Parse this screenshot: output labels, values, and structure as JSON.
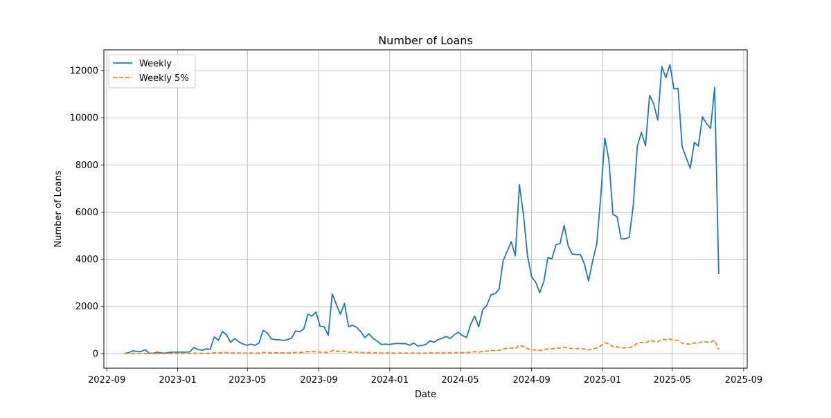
{
  "chart_data": {
    "type": "line",
    "title": "Number of Loans",
    "xlabel": "Date",
    "ylabel": "Number of Loans",
    "xlim": [
      "2022-08-27",
      "2025-09-07"
    ],
    "ylim": [
      -620,
      12880
    ],
    "xticks": [
      "2022-09",
      "2023-01",
      "2023-05",
      "2023-09",
      "2024-01",
      "2024-05",
      "2024-09",
      "2025-01",
      "2025-05",
      "2025-09"
    ],
    "yticks": [
      0,
      2000,
      4000,
      6000,
      8000,
      10000,
      12000
    ],
    "grid": true,
    "legend_position": "top-left",
    "x": [
      "2022-10-02",
      "2022-10-09",
      "2022-10-16",
      "2022-10-23",
      "2022-10-30",
      "2022-11-06",
      "2022-11-13",
      "2022-11-20",
      "2022-11-27",
      "2022-12-04",
      "2022-12-11",
      "2022-12-18",
      "2022-12-25",
      "2023-01-01",
      "2023-01-08",
      "2023-01-15",
      "2023-01-22",
      "2023-01-29",
      "2023-02-05",
      "2023-02-12",
      "2023-02-19",
      "2023-02-26",
      "2023-03-05",
      "2023-03-12",
      "2023-03-19",
      "2023-03-26",
      "2023-04-02",
      "2023-04-09",
      "2023-04-16",
      "2023-04-23",
      "2023-04-30",
      "2023-05-07",
      "2023-05-14",
      "2023-05-21",
      "2023-05-28",
      "2023-06-04",
      "2023-06-11",
      "2023-06-18",
      "2023-06-25",
      "2023-07-02",
      "2023-07-09",
      "2023-07-16",
      "2023-07-23",
      "2023-07-30",
      "2023-08-06",
      "2023-08-13",
      "2023-08-20",
      "2023-08-27",
      "2023-09-03",
      "2023-09-10",
      "2023-09-17",
      "2023-09-24",
      "2023-10-01",
      "2023-10-08",
      "2023-10-15",
      "2023-10-22",
      "2023-10-29",
      "2023-11-05",
      "2023-11-12",
      "2023-11-19",
      "2023-11-26",
      "2023-12-03",
      "2023-12-10",
      "2023-12-17",
      "2023-12-24",
      "2023-12-31",
      "2024-01-07",
      "2024-01-14",
      "2024-01-21",
      "2024-01-28",
      "2024-02-04",
      "2024-02-11",
      "2024-02-18",
      "2024-02-25",
      "2024-03-03",
      "2024-03-10",
      "2024-03-17",
      "2024-03-24",
      "2024-03-31",
      "2024-04-07",
      "2024-04-14",
      "2024-04-21",
      "2024-04-28",
      "2024-05-05",
      "2024-05-12",
      "2024-05-19",
      "2024-05-26",
      "2024-06-02",
      "2024-06-09",
      "2024-06-16",
      "2024-06-23",
      "2024-06-30",
      "2024-07-07",
      "2024-07-14",
      "2024-07-21",
      "2024-07-28",
      "2024-08-04",
      "2024-08-11",
      "2024-08-18",
      "2024-08-25",
      "2024-09-01",
      "2024-09-08",
      "2024-09-15",
      "2024-09-22",
      "2024-09-29",
      "2024-10-06",
      "2024-10-13",
      "2024-10-20",
      "2024-10-27",
      "2024-11-03",
      "2024-11-10",
      "2024-11-17",
      "2024-11-24",
      "2024-12-01",
      "2024-12-08",
      "2024-12-15",
      "2024-12-22",
      "2024-12-29",
      "2025-01-05",
      "2025-01-12",
      "2025-01-19",
      "2025-01-26",
      "2025-02-02",
      "2025-02-09",
      "2025-02-16",
      "2025-02-23",
      "2025-03-02",
      "2025-03-09",
      "2025-03-16",
      "2025-03-23",
      "2025-03-30",
      "2025-04-06",
      "2025-04-13",
      "2025-04-20",
      "2025-04-27",
      "2025-05-04",
      "2025-05-11",
      "2025-05-18",
      "2025-05-25",
      "2025-06-01",
      "2025-06-08",
      "2025-06-15",
      "2025-06-22",
      "2025-06-29",
      "2025-07-06",
      "2025-07-13",
      "2025-07-20"
    ],
    "series": [
      {
        "name": "Weekly",
        "color": "#1f77b4",
        "style": "solid",
        "values": [
          5,
          40,
          120,
          80,
          90,
          160,
          10,
          10,
          60,
          20,
          20,
          50,
          60,
          60,
          60,
          60,
          70,
          260,
          170,
          140,
          200,
          180,
          710,
          560,
          930,
          800,
          470,
          640,
          500,
          410,
          350,
          400,
          350,
          450,
          980,
          880,
          620,
          590,
          590,
          550,
          590,
          660,
          960,
          920,
          1040,
          1670,
          1590,
          1760,
          1160,
          1140,
          770,
          2530,
          2080,
          1670,
          2130,
          1140,
          1200,
          1110,
          930,
          670,
          840,
          650,
          530,
          390,
          400,
          390,
          410,
          430,
          420,
          420,
          350,
          450,
          320,
          340,
          380,
          540,
          480,
          590,
          650,
          720,
          640,
          800,
          900,
          760,
          680,
          1230,
          1590,
          1130,
          1860,
          2050,
          2490,
          2540,
          2720,
          3930,
          4340,
          4740,
          4140,
          7160,
          5890,
          4140,
          3260,
          3030,
          2580,
          3050,
          4070,
          4020,
          4620,
          4670,
          5440,
          4560,
          4220,
          4200,
          4200,
          3790,
          3080,
          3920,
          4630,
          6660,
          9140,
          8200,
          5890,
          5810,
          4860,
          4870,
          4920,
          6300,
          8800,
          9380,
          8810,
          10950,
          10590,
          9900,
          12170,
          11700,
          12250,
          11220,
          11250,
          8780,
          8300,
          7860,
          8950,
          8800,
          10040,
          9750,
          9550,
          11290,
          3370
        ]
      },
      {
        "name": "Weekly 5%",
        "color": "#ff7f0e",
        "style": "dashed",
        "values": [
          0,
          2,
          6,
          4,
          5,
          8,
          1,
          1,
          3,
          1,
          1,
          3,
          3,
          3,
          3,
          3,
          4,
          13,
          9,
          7,
          10,
          9,
          36,
          28,
          47,
          40,
          24,
          32,
          25,
          21,
          18,
          20,
          18,
          23,
          49,
          44,
          31,
          30,
          30,
          28,
          30,
          33,
          48,
          46,
          52,
          84,
          80,
          88,
          58,
          57,
          39,
          127,
          104,
          84,
          107,
          57,
          60,
          56,
          47,
          34,
          42,
          33,
          27,
          20,
          20,
          20,
          21,
          22,
          21,
          21,
          18,
          23,
          16,
          17,
          19,
          27,
          24,
          30,
          33,
          36,
          32,
          40,
          45,
          38,
          34,
          62,
          80,
          57,
          93,
          103,
          125,
          127,
          136,
          197,
          217,
          237,
          207,
          358,
          295,
          207,
          163,
          152,
          129,
          153,
          204,
          201,
          231,
          234,
          272,
          228,
          211,
          210,
          210,
          190,
          154,
          196,
          232,
          333,
          457,
          410,
          295,
          291,
          243,
          244,
          246,
          315,
          440,
          469,
          441,
          548,
          530,
          495,
          609,
          585,
          613,
          561,
          563,
          439,
          415,
          393,
          448,
          440,
          502,
          488,
          478,
          565,
          169
        ]
      }
    ]
  }
}
